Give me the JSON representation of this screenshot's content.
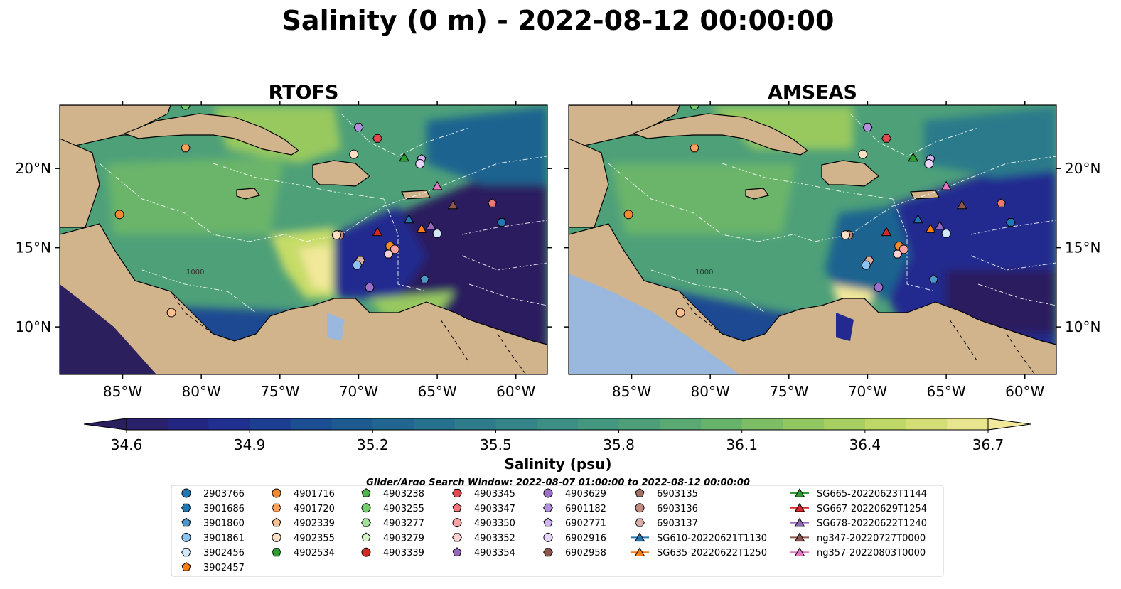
{
  "title": "Salinity (0 m) - 2022-08-12 00:00:00",
  "panels": [
    {
      "id": "left",
      "title": "RTOFS"
    },
    {
      "id": "right",
      "title": "AMSEAS"
    }
  ],
  "chart_data": {
    "type": "heatmap",
    "map_extent": {
      "lon": [
        -89,
        -58
      ],
      "lat": [
        7,
        24
      ]
    },
    "x_ticks": [
      "85°W",
      "80°W",
      "75°W",
      "70°W",
      "65°W",
      "60°W"
    ],
    "x_tick_values": [
      -85,
      -80,
      -75,
      -70,
      -65,
      -60
    ],
    "y_ticks": [
      "10°N",
      "15°N",
      "20°N"
    ],
    "y_tick_values": [
      10,
      15,
      20
    ],
    "colorbar": {
      "label": "Salinity (psu)",
      "range": [
        34.6,
        36.7
      ],
      "ticks": [
        "34.6",
        "34.9",
        "35.2",
        "35.5",
        "35.8",
        "36.1",
        "36.4",
        "36.7"
      ],
      "tick_values": [
        34.6,
        34.9,
        35.2,
        35.5,
        35.8,
        36.1,
        36.4,
        36.7
      ],
      "colormap": "haline",
      "stops": [
        "#2b1f5e",
        "#23298f",
        "#1a4a92",
        "#1f6490",
        "#2c7a8b",
        "#3b8f84",
        "#4ea079",
        "#6bb56b",
        "#98c95f",
        "#c6dc68",
        "#f2e89a"
      ],
      "extend": "both"
    },
    "search_window": "Glider/Argo Search Window: 2022-08-07 01:00:00 to 2022-08-12 00:00:00",
    "contour_labels": [
      "1000"
    ],
    "land_color": "#d2b48c",
    "lake_color": "#9ab8dd",
    "legend": [
      {
        "label": "2903766",
        "marker": "circle",
        "color": "#1f77b4"
      },
      {
        "label": "3901686",
        "marker": "hexagon",
        "color": "#1f77b4"
      },
      {
        "label": "3901860",
        "marker": "pentagon",
        "color": "#4a97c9"
      },
      {
        "label": "3901861",
        "marker": "circle",
        "color": "#8cc4ef"
      },
      {
        "label": "3902456",
        "marker": "hexagon",
        "color": "#d2e9fb"
      },
      {
        "label": "3902457",
        "marker": "pentagon",
        "color": "#ff7f0e"
      },
      {
        "label": "4901716",
        "marker": "circle",
        "color": "#f28a2e"
      },
      {
        "label": "4901720",
        "marker": "hexagon",
        "color": "#fba35e"
      },
      {
        "label": "4902339",
        "marker": "pentagon",
        "color": "#fcc08e"
      },
      {
        "label": "4902355",
        "marker": "circle",
        "color": "#fde0c4"
      },
      {
        "label": "4902534",
        "marker": "hexagon",
        "color": "#2ca02c"
      },
      {
        "label": "4903238",
        "marker": "pentagon",
        "color": "#4bb84b"
      },
      {
        "label": "4903255",
        "marker": "circle",
        "color": "#72ce6c"
      },
      {
        "label": "4903277",
        "marker": "hexagon",
        "color": "#a2e29a"
      },
      {
        "label": "4903279",
        "marker": "pentagon",
        "color": "#d4f3c8"
      },
      {
        "label": "4903339",
        "marker": "circle",
        "color": "#d62728"
      },
      {
        "label": "4903345",
        "marker": "hexagon",
        "color": "#e04b4d"
      },
      {
        "label": "4903347",
        "marker": "pentagon",
        "color": "#ee7777"
      },
      {
        "label": "4903350",
        "marker": "circle",
        "color": "#f5a3a3"
      },
      {
        "label": "4903352",
        "marker": "hexagon",
        "color": "#fbd1d0"
      },
      {
        "label": "4903354",
        "marker": "pentagon",
        "color": "#9467bd"
      },
      {
        "label": "4903629",
        "marker": "circle",
        "color": "#9c6fcb"
      },
      {
        "label": "6901182",
        "marker": "hexagon",
        "color": "#b191dc"
      },
      {
        "label": "6902771",
        "marker": "pentagon",
        "color": "#cfb5ef"
      },
      {
        "label": "6902916",
        "marker": "circle",
        "color": "#e8d6fa"
      },
      {
        "label": "6902958",
        "marker": "hexagon",
        "color": "#8c564b"
      },
      {
        "label": "6903135",
        "marker": "pentagon",
        "color": "#a47065"
      },
      {
        "label": "6903136",
        "marker": "circle",
        "color": "#c08b80"
      },
      {
        "label": "6903137",
        "marker": "hexagon",
        "color": "#d9aea4"
      },
      {
        "label": "SG610-20220621T1130",
        "marker": "triangle",
        "color": "#1f77b4"
      },
      {
        "label": "SG635-20220622T1250",
        "marker": "triangle",
        "color": "#ff7f0e"
      },
      {
        "label": "SG665-20220623T1144",
        "marker": "triangle",
        "color": "#2ca02c"
      },
      {
        "label": "SG667-20220629T1254",
        "marker": "triangle",
        "color": "#d62728"
      },
      {
        "label": "SG678-20220622T1240",
        "marker": "triangle",
        "color": "#9467bd"
      },
      {
        "label": "ng347-20220727T0000",
        "marker": "triangle",
        "color": "#8c564b"
      },
      {
        "label": "ng357-20220803T0000",
        "marker": "triangle",
        "color": "#e377c2"
      }
    ],
    "points": [
      {
        "id": "4902534",
        "lon": -81,
        "lat": 24,
        "marker": "circle",
        "color": "#72ce6c"
      },
      {
        "id": "4901716",
        "lon": -85.2,
        "lat": 17.1,
        "marker": "circle",
        "color": "#f28a2e"
      },
      {
        "id": "4902355",
        "lon": -70.3,
        "lat": 20.9,
        "marker": "circle",
        "color": "#fde0c4"
      },
      {
        "id": "6901182",
        "lon": -70,
        "lat": 22.6,
        "marker": "hexagon",
        "color": "#b191dc"
      },
      {
        "id": "4903345",
        "lon": -68.8,
        "lat": 21.9,
        "marker": "hexagon",
        "color": "#e04b4d"
      },
      {
        "id": "SG665-20220623T1144",
        "lon": -67.1,
        "lat": 20.7,
        "marker": "triangle",
        "color": "#2ca02c"
      },
      {
        "id": "6902771",
        "lon": -66,
        "lat": 20.6,
        "marker": "pentagon",
        "color": "#cfb5ef"
      },
      {
        "id": "6902916",
        "lon": -66.1,
        "lat": 20.3,
        "marker": "circle",
        "color": "#e8d6fa"
      },
      {
        "id": "ng357-20220803T0000",
        "lon": -65,
        "lat": 18.9,
        "marker": "triangle",
        "color": "#e377c2"
      },
      {
        "id": "ng347-20220727T0000",
        "lon": -64,
        "lat": 17.7,
        "marker": "triangle",
        "color": "#8c564b"
      },
      {
        "id": "4903347",
        "lon": -61.5,
        "lat": 17.8,
        "marker": "pentagon",
        "color": "#ee7777"
      },
      {
        "id": "3901686",
        "lon": -60.9,
        "lat": 16.6,
        "marker": "hexagon",
        "color": "#1f77b4"
      },
      {
        "id": "SG610-20220621T1130",
        "lon": -66.8,
        "lat": 16.8,
        "marker": "triangle",
        "color": "#1f77b4"
      },
      {
        "id": "SG678-20220622T1240",
        "lon": -65.4,
        "lat": 16.4,
        "marker": "triangle",
        "color": "#9467bd"
      },
      {
        "id": "SG635-20220622T1250",
        "lon": -66,
        "lat": 16.2,
        "marker": "triangle",
        "color": "#ff7f0e"
      },
      {
        "id": "3902456",
        "lon": -65,
        "lat": 15.9,
        "marker": "circle",
        "color": "#d2e9fb"
      },
      {
        "id": "SG667-20220629T1254",
        "lon": -68.8,
        "lat": 16,
        "marker": "triangle",
        "color": "#d62728"
      },
      {
        "id": "6903136",
        "lon": -71.2,
        "lat": 15.8,
        "marker": "circle",
        "color": "#c08b80"
      },
      {
        "id": "4902355b",
        "lon": -71.4,
        "lat": 15.8,
        "marker": "circle",
        "color": "#fde0c4"
      },
      {
        "id": "4901716b",
        "lon": -68,
        "lat": 15.1,
        "marker": "circle",
        "color": "#f28a2e"
      },
      {
        "id": "4903350",
        "lon": -67.7,
        "lat": 14.9,
        "marker": "circle",
        "color": "#f5a3a3"
      },
      {
        "id": "4903352",
        "lon": -68.1,
        "lat": 14.6,
        "marker": "hexagon",
        "color": "#fbd1d0"
      },
      {
        "id": "6903137",
        "lon": -69.9,
        "lat": 14.2,
        "marker": "hexagon",
        "color": "#d9aea4"
      },
      {
        "id": "3901861",
        "lon": -70.1,
        "lat": 13.9,
        "marker": "circle",
        "color": "#8cc4ef"
      },
      {
        "id": "3901860",
        "lon": -65.8,
        "lat": 13,
        "marker": "pentagon",
        "color": "#4a97c9"
      },
      {
        "id": "4903629",
        "lon": -69.3,
        "lat": 12.5,
        "marker": "circle",
        "color": "#9c6fcb"
      },
      {
        "id": "4902339",
        "lon": -81.9,
        "lat": 10.9,
        "marker": "circle",
        "color": "#fcc08e"
      },
      {
        "id": "3902457",
        "lon": -81,
        "lat": 21.3,
        "marker": "hexagon",
        "color": "#fba35e"
      }
    ]
  }
}
